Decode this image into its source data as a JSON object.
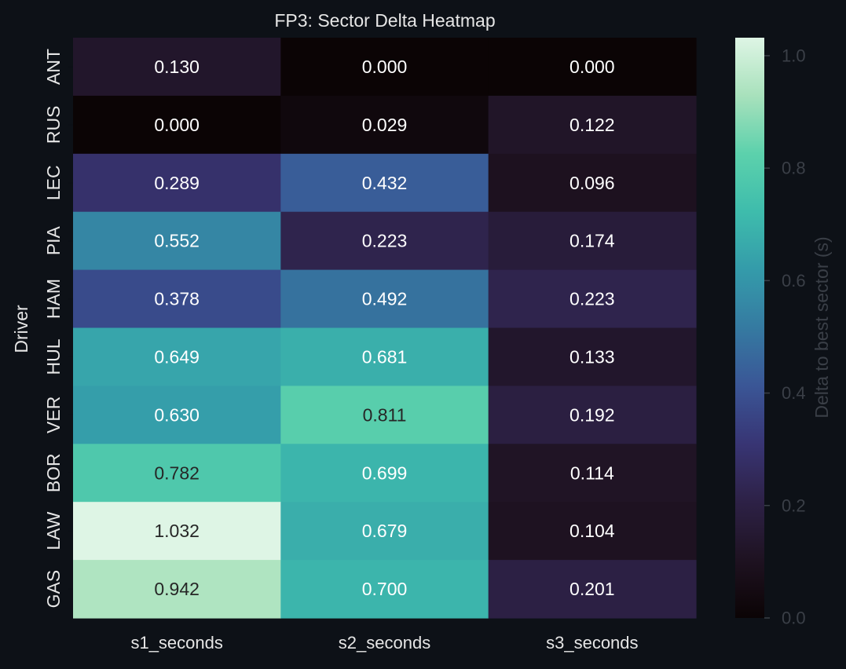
{
  "colors": {
    "background": "#0d1117",
    "text": "#e6e6e6",
    "muted_text": "#3a3f47",
    "colormap": "mako"
  },
  "chart_data": {
    "type": "heatmap",
    "title": "FP3: Sector Delta Heatmap",
    "ylabel": "Driver",
    "xlabel": "",
    "columns": [
      "s1_seconds",
      "s2_seconds",
      "s3_seconds"
    ],
    "rows": [
      "ANT",
      "RUS",
      "LEC",
      "PIA",
      "HAM",
      "HUL",
      "VER",
      "BOR",
      "LAW",
      "GAS"
    ],
    "values": [
      [
        0.13,
        0.0,
        0.0
      ],
      [
        0.0,
        0.029,
        0.122
      ],
      [
        0.289,
        0.432,
        0.096
      ],
      [
        0.552,
        0.223,
        0.174
      ],
      [
        0.378,
        0.492,
        0.223
      ],
      [
        0.649,
        0.681,
        0.133
      ],
      [
        0.63,
        0.811,
        0.192
      ],
      [
        0.782,
        0.699,
        0.114
      ],
      [
        1.032,
        0.679,
        0.104
      ],
      [
        0.942,
        0.7,
        0.201
      ]
    ],
    "cell_labels": [
      [
        "0.130",
        "0.000",
        "0.000"
      ],
      [
        "0.000",
        "0.029",
        "0.122"
      ],
      [
        "0.289",
        "0.432",
        "0.096"
      ],
      [
        "0.552",
        "0.223",
        "0.174"
      ],
      [
        "0.378",
        "0.492",
        "0.223"
      ],
      [
        "0.649",
        "0.681",
        "0.133"
      ],
      [
        "0.630",
        "0.811",
        "0.192"
      ],
      [
        "0.782",
        "0.699",
        "0.114"
      ],
      [
        "1.032",
        "0.679",
        "0.104"
      ],
      [
        "0.942",
        "0.700",
        "0.201"
      ]
    ],
    "colorbar": {
      "label": "Delta to best sector (s)",
      "range": [
        0.0,
        1.032
      ],
      "ticks": [
        0.0,
        0.2,
        0.4,
        0.6,
        0.8,
        1.0
      ],
      "tick_labels": [
        "0.0",
        "0.2",
        "0.4",
        "0.6",
        "0.8",
        "1.0"
      ]
    }
  }
}
